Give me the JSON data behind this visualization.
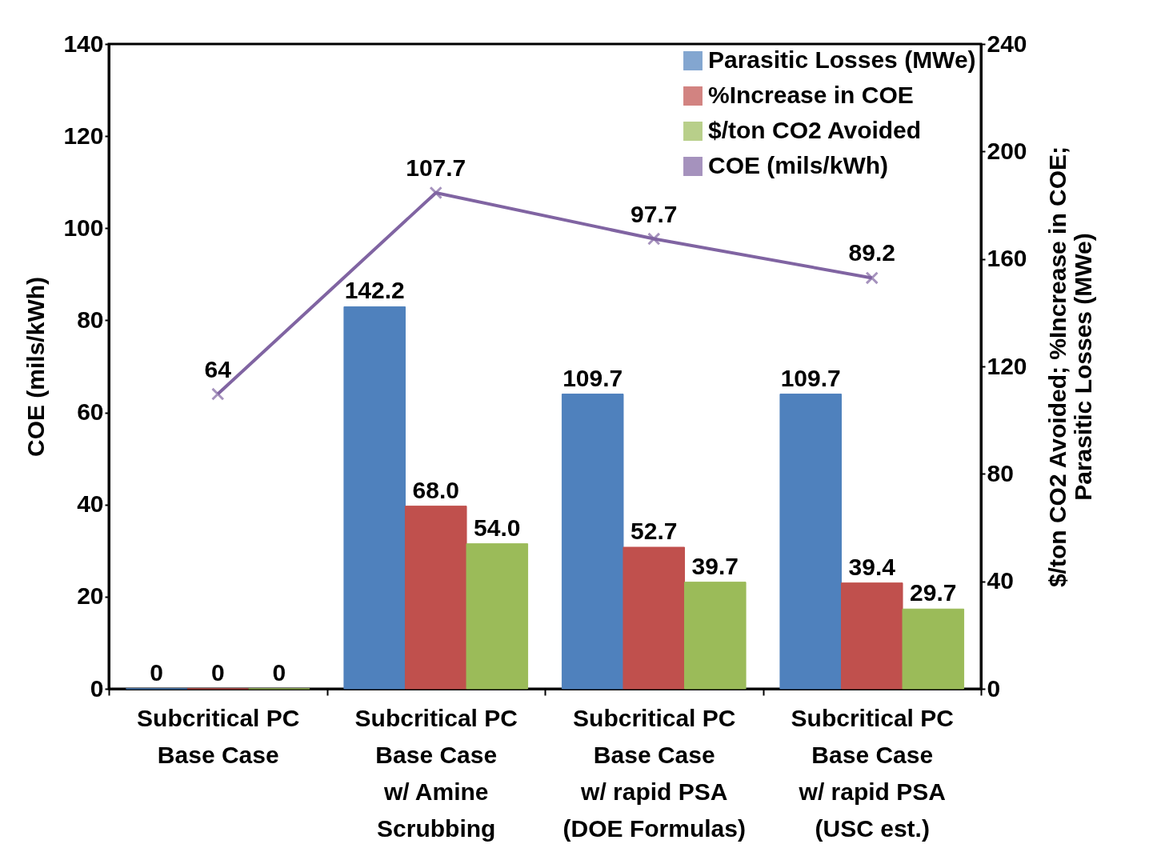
{
  "chart_data": {
    "type": "bar",
    "ylabel": "COE (mils/kWh)",
    "y2label": "$/ton CO2 Avoided; %Increase in COE;\nParasitic Losses (MWe)",
    "categories": [
      "Subcritical PC\nBase Case",
      "Subcritical PC\nBase Case\nw/ Amine\nScrubbing",
      "Subcritical PC\nBase Case\nw/ rapid PSA\n(DOE Formulas)",
      "Subcritical PC\nBase Case\nw/ rapid PSA\n(USC est.)"
    ],
    "series": [
      {
        "name": "Parasitic Losses (MWe)",
        "axis": "y2",
        "color": "#4f81bd",
        "values": [
          0,
          142.2,
          109.7,
          109.7
        ],
        "value_labels": [
          "0",
          "142.2",
          "109.7",
          "109.7"
        ]
      },
      {
        "name": "%Increase in COE",
        "axis": "y2",
        "color": "#c0504d",
        "values": [
          0,
          68.0,
          52.7,
          39.4
        ],
        "value_labels": [
          "0",
          "68.0",
          "52.7",
          "39.4"
        ]
      },
      {
        "name": "$/ton CO2 Avoided",
        "axis": "y2",
        "color": "#9bbb59",
        "values": [
          0,
          54.0,
          39.7,
          29.7
        ],
        "value_labels": [
          "0",
          "54.0",
          "39.7",
          "29.7"
        ]
      },
      {
        "name": "COE (mils/kWh)",
        "type": "line",
        "color": "#8064a2",
        "marker": "cross",
        "values": [
          64,
          107.7,
          97.7,
          89.2
        ],
        "value_labels": [
          "64",
          "107.7",
          "97.7",
          "89.2"
        ]
      }
    ],
    "ylim": [
      0,
      140
    ],
    "yticks": [
      0,
      20,
      40,
      60,
      80,
      100,
      120,
      140
    ],
    "y2lim": [
      0,
      240
    ],
    "y2ticks": [
      0,
      40,
      80,
      120,
      160,
      200,
      240
    ],
    "legend": "top right",
    "grid": false
  }
}
